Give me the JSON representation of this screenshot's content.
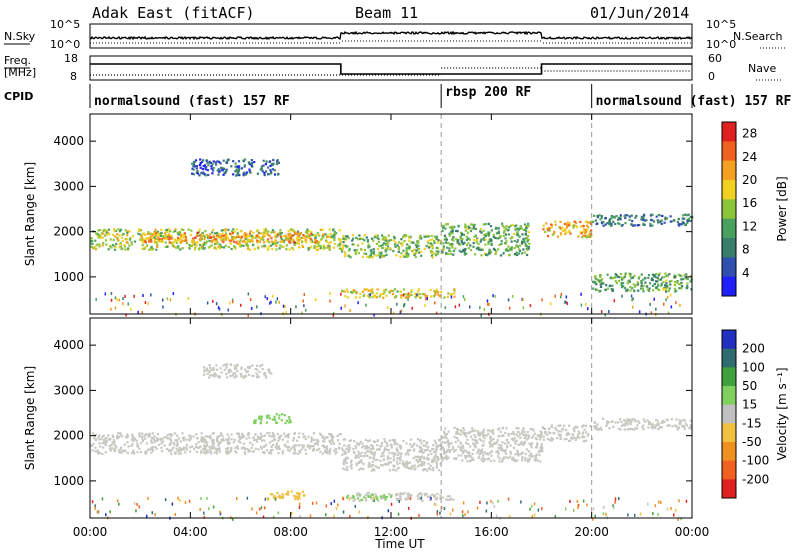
{
  "header": {
    "station": "Adak East (fitACF)",
    "beam": "Beam 11",
    "date": "01/Jun/2014"
  },
  "strip_labels": {
    "nsky": "N.Sky",
    "nsearch": "N.Search",
    "freq": "Freq.",
    "freq_unit": "[MHz]",
    "nave": "Nave",
    "cpid": "CPID",
    "noise_hi_left": "10^5",
    "noise_lo_left": "10^0",
    "noise_hi_right": "10^5",
    "noise_lo_right": "10^0",
    "freq_hi": "18",
    "freq_lo": "8",
    "nave_hi": "60",
    "nave_lo": "0"
  },
  "cpid_modes": [
    {
      "label": "normalsound (fast) 157 RF",
      "start_hr": 0
    },
    {
      "label": "rbsp 200 RF",
      "start_hr": 14
    },
    {
      "label": "normalsound (fast) 157 RF",
      "start_hr": 20
    }
  ],
  "colorbars": {
    "power": {
      "label": "Power [dB]",
      "ticks": [
        "28",
        "24",
        "20",
        "16",
        "12",
        "8",
        "4"
      ]
    },
    "velocity": {
      "label": "Velocity [m s⁻¹]",
      "ticks": [
        "200",
        "100",
        "50",
        "15",
        "-15",
        "-50",
        "-100",
        "-200"
      ]
    }
  },
  "chart_data": [
    {
      "type": "heatmap",
      "title": "Power",
      "ylabel": "Slant Range [km]",
      "xlabel": "Time UT",
      "x_ticks": [
        "00:00",
        "04:00",
        "08:00",
        "12:00",
        "16:00",
        "20:00",
        "00:00"
      ],
      "y_ticks": [
        1000,
        2000,
        3000,
        4000
      ],
      "xlim_hours": [
        0,
        24
      ],
      "ylim_km": [
        180,
        4600
      ],
      "colorbar": {
        "label": "Power [dB]",
        "range": [
          0,
          30
        ],
        "ticks": [
          4,
          8,
          12,
          16,
          20,
          24,
          28
        ]
      },
      "bands": [
        {
          "t0": 0,
          "t1": 10,
          "r0": 1620,
          "r1": 2080,
          "value": 16
        },
        {
          "t0": 2,
          "t1": 9,
          "r0": 1780,
          "r1": 2000,
          "value": 22
        },
        {
          "t0": 10,
          "t1": 14,
          "r0": 1450,
          "r1": 1950,
          "value": 14
        },
        {
          "t0": 14,
          "t1": 17.5,
          "r0": 1500,
          "r1": 2200,
          "value": 12
        },
        {
          "t0": 18,
          "t1": 20,
          "r0": 1900,
          "r1": 2250,
          "value": 20
        },
        {
          "t0": 20,
          "t1": 24,
          "r0": 2150,
          "r1": 2400,
          "value": 8
        },
        {
          "t0": 10,
          "t1": 14.5,
          "r0": 560,
          "r1": 760,
          "value": 18
        },
        {
          "t0": 4,
          "t1": 7.5,
          "r0": 3260,
          "r1": 3620,
          "value": 6
        },
        {
          "t0": 20,
          "t1": 24,
          "r0": 700,
          "r1": 1100,
          "value": 12
        }
      ]
    },
    {
      "type": "heatmap",
      "title": "Velocity",
      "ylabel": "Slant Range [km]",
      "xlabel": "Time UT",
      "x_ticks": [
        "00:00",
        "04:00",
        "08:00",
        "12:00",
        "16:00",
        "20:00",
        "00:00"
      ],
      "y_ticks": [
        1000,
        2000,
        3000,
        4000
      ],
      "xlim_hours": [
        0,
        24
      ],
      "ylim_km": [
        180,
        4600
      ],
      "colorbar": {
        "label": "Velocity [m s⁻¹]",
        "range": [
          -250,
          250
        ],
        "ticks": [
          200,
          100,
          50,
          15,
          -15,
          -50,
          -100,
          -200
        ]
      },
      "bands": [
        {
          "t0": 0,
          "t1": 10,
          "r0": 1620,
          "r1": 2080,
          "value": 0
        },
        {
          "t0": 10,
          "t1": 14,
          "r0": 1250,
          "r1": 1950,
          "value": 0
        },
        {
          "t0": 14,
          "t1": 18,
          "r0": 1450,
          "r1": 2200,
          "value": 0
        },
        {
          "t0": 18,
          "t1": 20,
          "r0": 1900,
          "r1": 2250,
          "value": 0
        },
        {
          "t0": 20,
          "t1": 24,
          "r0": 2150,
          "r1": 2400,
          "value": 0
        },
        {
          "t0": 10.2,
          "t1": 14.5,
          "r0": 580,
          "r1": 760,
          "value": 0
        },
        {
          "t0": 10.2,
          "t1": 12,
          "r0": 600,
          "r1": 720,
          "value": 40
        },
        {
          "t0": 4.5,
          "t1": 7.2,
          "r0": 3300,
          "r1": 3600,
          "value": 0
        },
        {
          "t0": 6.5,
          "t1": 8,
          "r0": 2300,
          "r1": 2500,
          "value": 30
        },
        {
          "t0": 7,
          "t1": 8.5,
          "r0": 600,
          "r1": 800,
          "value": -40
        }
      ]
    }
  ],
  "colors": {
    "power": [
      "#2020ff",
      "#3050b0",
      "#3a7d6a",
      "#4aa060",
      "#8cc43a",
      "#f0d020",
      "#f5a020",
      "#f06020",
      "#e02020"
    ],
    "velocity_pos": [
      "#2030c0",
      "#2f6c70",
      "#40a040",
      "#80d060"
    ],
    "velocity_neg": [
      "#c0c0c0",
      "#f0c040",
      "#f09020",
      "#f06020",
      "#e02020"
    ],
    "ground_scatter": "#c8c8c0"
  }
}
